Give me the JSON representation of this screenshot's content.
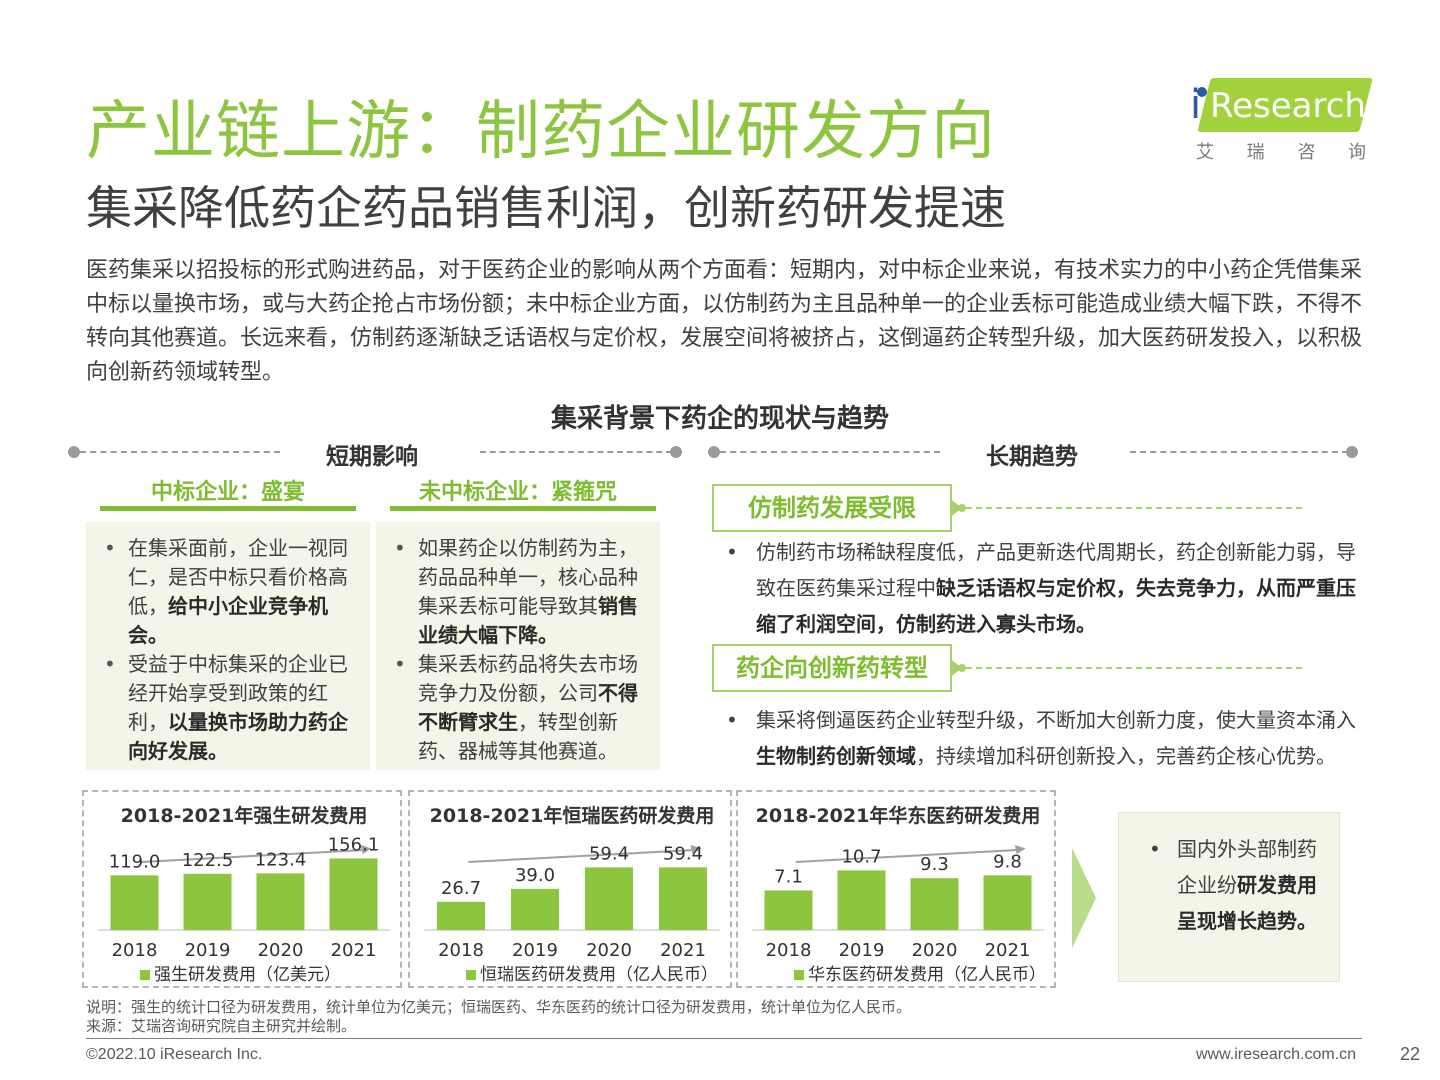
{
  "page": {
    "title": "产业链上游：制药企业研发方向",
    "subtitle": "集采降低药企药品销售利润，创新药研发提速",
    "intro": "医药集采以招投标的形式购进药品，对于医药企业的影响从两个方面看：短期内，对中标企业来说，有技术实力的中小药企凭借集采中标以量换市场，或与大药企抢占市场份额；未中标企业方面，以仿制药为主且品种单一的企业丢标可能造成业绩大幅下跌，不得不转向其他赛道。长远来看，仿制药逐渐缺乏话语权与定价权，发展空间将被挤占，这倒逼药企转型升级，加大医药研发投入，以积极向创新药领域转型。",
    "section_title": "集采背景下药企的现状与趋势"
  },
  "logo": {
    "i": "i",
    "text": "Research",
    "cn": [
      "艾",
      "瑞",
      "咨",
      "询"
    ],
    "accent": "#a2d23b",
    "dot_color": "#2d5aa0"
  },
  "short_term": {
    "label": "短期影响",
    "col1": {
      "title": "中标企业：盛宴",
      "items": [
        {
          "plain": "在集采面前，企业一视同仁，是否中标只看价格高低，",
          "bold": "给中小企业竞争机会。"
        },
        {
          "plain": "受益于中标集采的企业已经开始享受到政策的红利，",
          "bold": "以量换市场助力药企向好发展。"
        }
      ]
    },
    "col2": {
      "title": "未中标企业：紧箍咒",
      "items": [
        {
          "plain": "如果药企以仿制药为主，药品品种单一，核心品种集采丢标可能导致其",
          "bold": "销售业绩大幅下降。",
          "tail": ""
        },
        {
          "plain": "集采丢标药品将失去市场竞争力及份额，公司",
          "bold": "不得不断臂求生",
          "tail": "，转型创新药、器械等其他赛道。"
        }
      ]
    }
  },
  "long_term": {
    "label": "长期趋势",
    "trend1": {
      "title": "仿制药发展受限",
      "plain": "仿制药市场稀缺程度低，产品更新迭代周期长，药企创新能力弱，导致在医药集采过程中",
      "bold": "缺乏话语权与定价权，失去竞争力，从而严重压缩了利润空间，仿制药进入寡头市场。"
    },
    "trend2": {
      "title": "药企向创新药转型",
      "plain": "集采将倒逼医药企业转型升级，不断加大创新力度，使大量资本涌入",
      "bold": "生物制药创新领域",
      "tail": "，持续增加科研创新投入，完善药企核心优势。"
    }
  },
  "chart_data": [
    {
      "type": "bar",
      "title": "2018-2021年强生研发费用",
      "categories": [
        "2018",
        "2019",
        "2020",
        "2021"
      ],
      "values": [
        119.0,
        122.5,
        123.4,
        156.1
      ],
      "value_labels": [
        "119.0",
        "122.5",
        "123.4",
        "156.1"
      ],
      "legend": "强生研发费用（亿美元）",
      "ylim": [
        0,
        170
      ],
      "color": "#8cc63f"
    },
    {
      "type": "bar",
      "title": "2018-2021年恒瑞医药研发费用",
      "categories": [
        "2018",
        "2019",
        "2020",
        "2021"
      ],
      "values": [
        26.7,
        39.0,
        59.4,
        59.4
      ],
      "value_labels": [
        "26.7",
        "39.0",
        "59.4",
        "59.4"
      ],
      "legend": "恒瑞医药研发费用（亿人民币）",
      "ylim": [
        0,
        74
      ],
      "color": "#8cc63f"
    },
    {
      "type": "bar",
      "title": "2018-2021年华东医药研发费用",
      "categories": [
        "2018",
        "2019",
        "2020",
        "2021"
      ],
      "values": [
        7.1,
        10.7,
        9.3,
        9.8
      ],
      "value_labels": [
        "7.1",
        "10.7",
        "9.3",
        "9.8"
      ],
      "legend": "华东医药研发费用（亿人民币）",
      "ylim": [
        0,
        14
      ],
      "color": "#8cc63f"
    }
  ],
  "note": {
    "plain": "国内外头部制药企业纷",
    "bold": "研发费用呈现增长趋势。"
  },
  "footnotes": {
    "explain": "说明：强生的统计口径为研发费用，统计单位为亿美元；恒瑞医药、华东医药的统计口径为研发费用，统计单位为亿人民币。",
    "source": "来源：艾瑞咨询研究院自主研究并绘制。"
  },
  "footer": {
    "copyright": "©2022.10 iResearch Inc.",
    "website": "www.iresearch.com.cn",
    "page_number": "22"
  }
}
